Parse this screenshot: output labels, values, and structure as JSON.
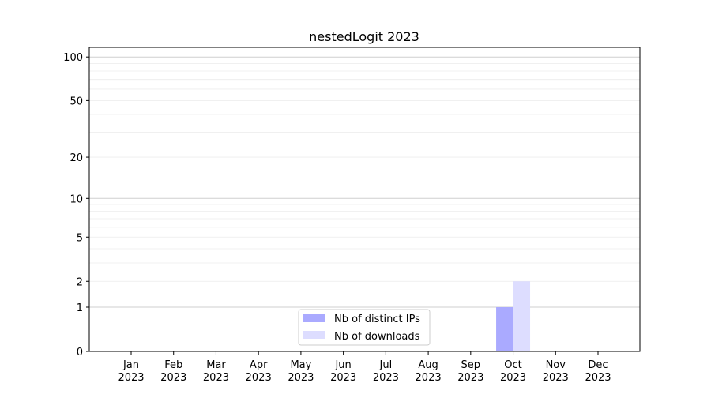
{
  "chart_data": {
    "type": "bar",
    "title": "nestedLogit 2023",
    "xlabel": "",
    "ylabel": "",
    "yscale": "symlog (log10(1+y))",
    "ylim": [
      0,
      116
    ],
    "yticks": [
      0,
      1,
      2,
      5,
      10,
      20,
      50,
      100
    ],
    "grid": true,
    "legend_position": "bottom-center",
    "categories": [
      "Jan\n2023",
      "Feb\n2023",
      "Mar\n2023",
      "Apr\n2023",
      "May\n2023",
      "Jun\n2023",
      "Jul\n2023",
      "Aug\n2023",
      "Sep\n2023",
      "Oct\n2023",
      "Nov\n2023",
      "Dec\n2023"
    ],
    "series": [
      {
        "name": "Nb of distinct IPs",
        "color": "#aaaaff",
        "values": [
          0,
          0,
          0,
          0,
          0,
          0,
          0,
          0,
          0,
          1,
          0,
          0
        ]
      },
      {
        "name": "Nb of downloads",
        "color": "#ddddff",
        "values": [
          0,
          0,
          0,
          0,
          0,
          0,
          0,
          0,
          0,
          2,
          0,
          0
        ]
      }
    ]
  }
}
